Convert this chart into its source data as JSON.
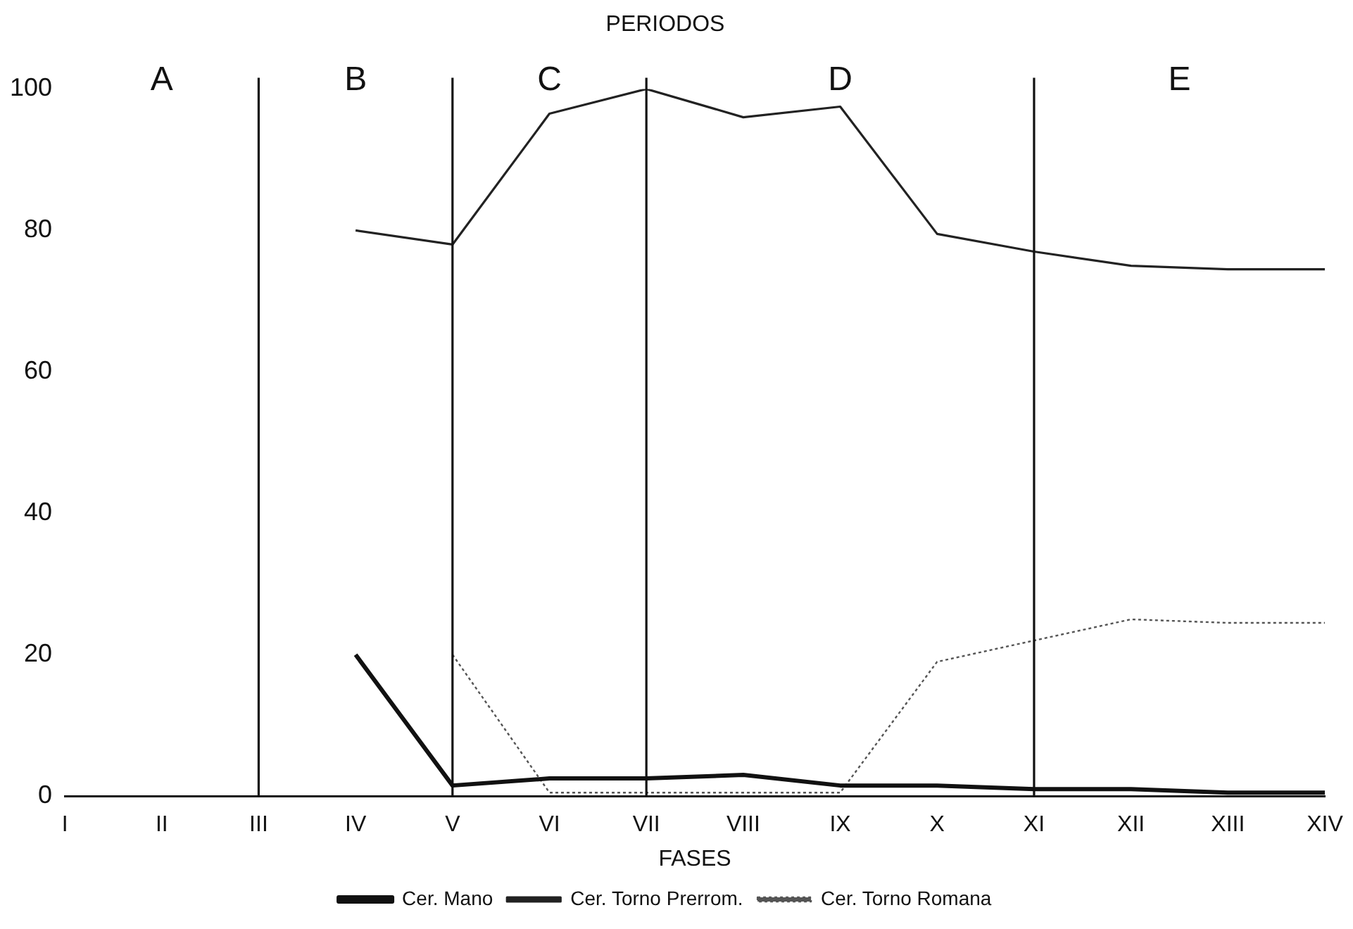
{
  "chart_data": {
    "type": "line",
    "title": "PERIODOS",
    "xlabel": "FASES",
    "categories": [
      "I",
      "II",
      "III",
      "IV",
      "V",
      "VI",
      "VII",
      "VIII",
      "IX",
      "X",
      "XI",
      "XII",
      "XIII",
      "XIV"
    ],
    "series": [
      {
        "name": "Cer. Mano",
        "color": "#111111",
        "line_style": "solid",
        "values": [
          null,
          null,
          null,
          20,
          1.5,
          2.5,
          2.5,
          3,
          1.5,
          1.5,
          1,
          1,
          0.5,
          0.5
        ]
      },
      {
        "name": "Cer. Torno Prerrom.",
        "color": "#222222",
        "line_style": "solid",
        "values": [
          null,
          null,
          null,
          80,
          78,
          96.5,
          100,
          96,
          97.5,
          79.5,
          77,
          75,
          74.5,
          74.5
        ]
      },
      {
        "name": "Cer. Torno Romana",
        "color": "#555555",
        "line_style": "dotted",
        "values": [
          null,
          null,
          null,
          null,
          20,
          0.5,
          0.5,
          0.5,
          0.5,
          19,
          22,
          25,
          24.5,
          24.5
        ]
      }
    ],
    "ylim": [
      0,
      100
    ],
    "yticks": [
      0,
      20,
      40,
      60,
      80,
      100
    ],
    "grid": false,
    "legend": "bottom",
    "marker": "none",
    "ref_lines": [
      {
        "axis": "x",
        "value": "III"
      },
      {
        "axis": "x",
        "value": "V"
      },
      {
        "axis": "x",
        "value": "VII"
      },
      {
        "axis": "x",
        "value": "XI"
      }
    ],
    "annotations": [
      "A",
      "B",
      "C",
      "D",
      "E"
    ]
  }
}
